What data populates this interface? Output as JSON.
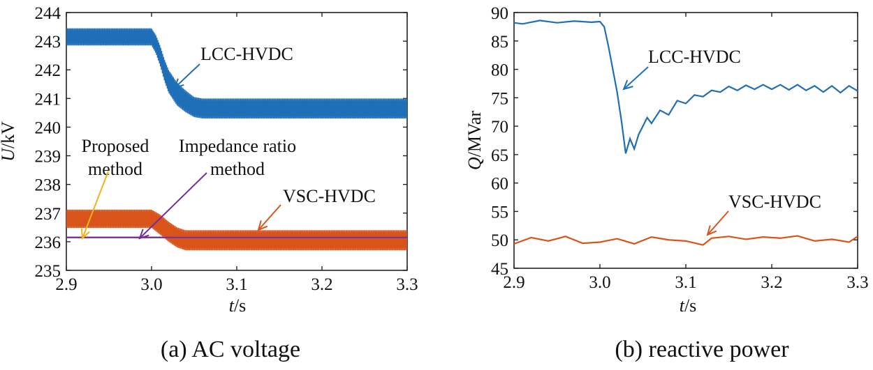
{
  "chart_data": [
    {
      "type": "line",
      "caption": "(a) AC voltage",
      "xlabel_var": "t",
      "xlabel_unit": "/s",
      "ylabel_var": "U",
      "ylabel_unit": "/kV",
      "xlim": [
        2.9,
        3.3
      ],
      "ylim": [
        235,
        244
      ],
      "xticks": [
        "2.9",
        "3.0",
        "3.1",
        "3.2",
        "3.3"
      ],
      "yticks": [
        "235",
        "236",
        "237",
        "238",
        "239",
        "240",
        "241",
        "242",
        "243",
        "244"
      ],
      "series": [
        {
          "name": "LCC-HVDC",
          "color": "#1f6fb8",
          "style": "band",
          "points": [
            [
              2.9,
              243.15
            ],
            [
              3.0,
              243.15
            ],
            [
              3.005,
              242.9
            ],
            [
              3.01,
              242.5
            ],
            [
              3.015,
              242.0
            ],
            [
              3.02,
              241.6
            ],
            [
              3.03,
              241.15
            ],
            [
              3.04,
              240.9
            ],
            [
              3.05,
              240.7
            ],
            [
              3.06,
              240.65
            ],
            [
              3.3,
              240.65
            ]
          ],
          "amplitude": [
            0.3,
            0.3,
            0.32,
            0.35,
            0.38,
            0.4,
            0.4,
            0.38,
            0.35,
            0.35,
            0.35
          ]
        },
        {
          "name": "VSC-HVDC",
          "color": "#d9541a",
          "style": "band",
          "points": [
            [
              2.9,
              236.8
            ],
            [
              3.0,
              236.8
            ],
            [
              3.01,
              236.6
            ],
            [
              3.02,
              236.35
            ],
            [
              3.03,
              236.15
            ],
            [
              3.04,
              236.05
            ],
            [
              3.06,
              236.05
            ],
            [
              3.3,
              236.05
            ]
          ],
          "amplitude": [
            0.32,
            0.32,
            0.35,
            0.35,
            0.35,
            0.35,
            0.35,
            0.35
          ]
        },
        {
          "name": "Proposed method",
          "color": "#f2b21a",
          "style": "line",
          "points": [
            [
              2.9,
              236.15
            ],
            [
              3.3,
              236.15
            ]
          ]
        },
        {
          "name": "Impedance ratio method",
          "color": "#7a2b9a",
          "style": "line",
          "points": [
            [
              2.9,
              236.15
            ],
            [
              3.3,
              236.15
            ]
          ]
        }
      ],
      "annotations": [
        {
          "lines": [
            "LCC-HVDC"
          ],
          "color": "#1f6fb8"
        },
        {
          "lines": [
            "VSC-HVDC"
          ],
          "color": "#d9541a"
        },
        {
          "lines": [
            "Proposed",
            "method"
          ],
          "color": "#f2b21a"
        },
        {
          "lines": [
            "Impedance ratio",
            "method"
          ],
          "color": "#7a2b9a"
        }
      ]
    },
    {
      "type": "line",
      "caption": "(b) reactive power",
      "xlabel_var": "t",
      "xlabel_unit": "/s",
      "ylabel_var": "Q",
      "ylabel_unit": "/MVar",
      "xlim": [
        2.9,
        3.3
      ],
      "ylim": [
        45,
        90
      ],
      "xticks": [
        "2.9",
        "3.0",
        "3.1",
        "3.2",
        "3.3"
      ],
      "yticks": [
        "45",
        "50",
        "55",
        "60",
        "65",
        "70",
        "75",
        "80",
        "85",
        "90"
      ],
      "series": [
        {
          "name": "LCC-HVDC",
          "color": "#1f6fb8",
          "style": "line",
          "points": [
            [
              2.9,
              88.2
            ],
            [
              2.91,
              88.0
            ],
            [
              2.93,
              88.6
            ],
            [
              2.95,
              88.2
            ],
            [
              2.97,
              88.5
            ],
            [
              2.99,
              88.3
            ],
            [
              3.0,
              88.4
            ],
            [
              3.005,
              87.5
            ],
            [
              3.01,
              84.0
            ],
            [
              3.02,
              76.0
            ],
            [
              3.025,
              71.0
            ],
            [
              3.03,
              65.2
            ],
            [
              3.035,
              67.8
            ],
            [
              3.04,
              66.0
            ],
            [
              3.045,
              68.5
            ],
            [
              3.05,
              70.0
            ],
            [
              3.055,
              71.5
            ],
            [
              3.06,
              70.5
            ],
            [
              3.07,
              72.8
            ],
            [
              3.08,
              72.0
            ],
            [
              3.09,
              74.5
            ],
            [
              3.1,
              74.0
            ],
            [
              3.11,
              75.5
            ],
            [
              3.12,
              75.2
            ],
            [
              3.13,
              76.3
            ],
            [
              3.14,
              76.0
            ],
            [
              3.15,
              77.0
            ],
            [
              3.16,
              76.3
            ],
            [
              3.17,
              77.2
            ],
            [
              3.18,
              76.5
            ],
            [
              3.19,
              77.3
            ],
            [
              3.2,
              76.5
            ],
            [
              3.21,
              77.3
            ],
            [
              3.22,
              76.4
            ],
            [
              3.23,
              77.3
            ],
            [
              3.24,
              76.3
            ],
            [
              3.25,
              77.1
            ],
            [
              3.26,
              76.0
            ],
            [
              3.27,
              77.1
            ],
            [
              3.28,
              75.9
            ],
            [
              3.29,
              77.1
            ],
            [
              3.3,
              76.2
            ]
          ]
        },
        {
          "name": "VSC-HVDC",
          "color": "#d9541a",
          "style": "line",
          "points": [
            [
              2.9,
              49.3
            ],
            [
              2.92,
              50.4
            ],
            [
              2.94,
              49.8
            ],
            [
              2.96,
              50.6
            ],
            [
              2.98,
              49.4
            ],
            [
              3.0,
              49.6
            ],
            [
              3.02,
              50.2
            ],
            [
              3.04,
              49.3
            ],
            [
              3.06,
              50.5
            ],
            [
              3.08,
              50.0
            ],
            [
              3.1,
              49.8
            ],
            [
              3.12,
              49.1
            ],
            [
              3.13,
              50.3
            ],
            [
              3.15,
              50.6
            ],
            [
              3.17,
              50.1
            ],
            [
              3.19,
              50.5
            ],
            [
              3.21,
              50.3
            ],
            [
              3.23,
              50.7
            ],
            [
              3.25,
              49.8
            ],
            [
              3.27,
              50.1
            ],
            [
              3.29,
              49.6
            ],
            [
              3.3,
              50.6
            ]
          ]
        }
      ],
      "annotations": [
        {
          "lines": [
            "LCC-HVDC"
          ],
          "color": "#1f6fb8"
        },
        {
          "lines": [
            "VSC-HVDC"
          ],
          "color": "#d9541a"
        }
      ]
    }
  ]
}
